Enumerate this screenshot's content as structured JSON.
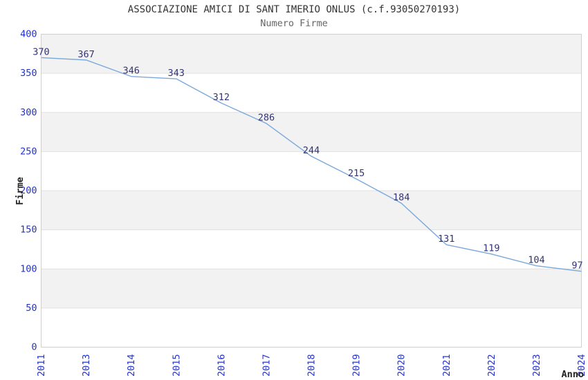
{
  "chart_data": {
    "type": "line",
    "title": "ASSOCIAZIONE AMICI DI SANT IMERIO ONLUS (c.f.93050270193)",
    "subtitle": "Numero Firme",
    "xlabel": "Anno",
    "ylabel": "Firme",
    "categories": [
      "2011",
      "2013",
      "2014",
      "2015",
      "2016",
      "2017",
      "2018",
      "2019",
      "2020",
      "2021",
      "2022",
      "2023",
      "2024"
    ],
    "series": [
      {
        "name": "Numero Firme",
        "values": [
          370,
          367,
          346,
          343,
          312,
          286,
          244,
          215,
          184,
          131,
          119,
          104,
          97
        ]
      }
    ],
    "ylim": [
      0,
      400
    ],
    "ytick_step": 50,
    "grid": true,
    "legend_position": "none",
    "data_labels_visible": true,
    "x_tick_rotation_deg": -90,
    "colors": {
      "line": "#7aa8dc",
      "tick_labels": "#2233cc",
      "data_labels": "#333377",
      "title": "#333333",
      "subtitle": "#666666",
      "axis_titles": "#222222",
      "band_white": "#ffffff",
      "band_shaded": "#f2f2f2",
      "gridline": "#e0e0e0",
      "plot_border": "#d0d0d0"
    }
  }
}
